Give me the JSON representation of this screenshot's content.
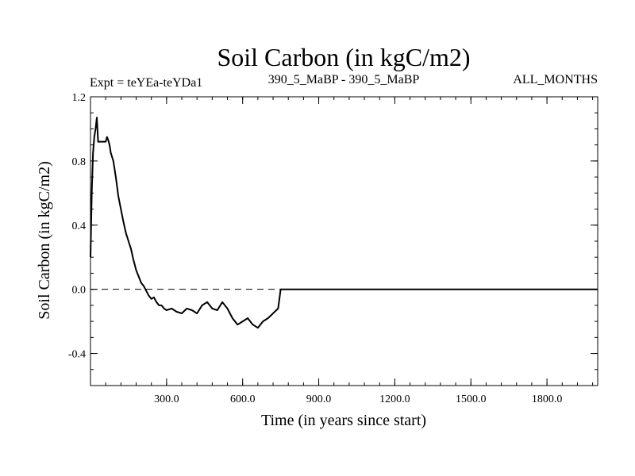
{
  "chart_data": {
    "type": "line",
    "title": "Soil Carbon (in kgC/m2)",
    "subtitle_left": "Expt = teYEa-teYDa1",
    "subtitle_center": "390_5_MaBP - 390_5_MaBP",
    "subtitle_right": "ALL_MONTHS",
    "xlabel": "Time (in years since start)",
    "ylabel": "Soil Carbon (in kgC/m2)",
    "xlim": [
      0,
      2000
    ],
    "ylim": [
      -0.6,
      1.2
    ],
    "x_ticks": [
      {
        "value": 300,
        "label": "300.0"
      },
      {
        "value": 600,
        "label": "600.0"
      },
      {
        "value": 900,
        "label": "900.0"
      },
      {
        "value": 1200,
        "label": "1200.0"
      },
      {
        "value": 1500,
        "label": "1500.0"
      },
      {
        "value": 1800,
        "label": "1800.0"
      }
    ],
    "y_ticks": [
      {
        "value": 1.2,
        "label": "1.2"
      },
      {
        "value": 0.8,
        "label": "0.8"
      },
      {
        "value": 0.4,
        "label": "0.4"
      },
      {
        "value": 0.0,
        "label": "0.0"
      },
      {
        "value": -0.4,
        "label": "-0.4"
      }
    ],
    "zero_line": {
      "value": 0.0,
      "style": "dashed"
    },
    "grid": false,
    "series": [
      {
        "line_color": "#000000",
        "x": [
          0,
          5,
          10,
          15,
          20,
          25,
          30,
          40,
          50,
          60,
          65,
          70,
          75,
          80,
          90,
          100,
          110,
          120,
          130,
          140,
          150,
          160,
          170,
          180,
          190,
          200,
          210,
          220,
          230,
          240,
          250,
          260,
          270,
          280,
          290,
          300,
          320,
          340,
          360,
          380,
          400,
          420,
          440,
          460,
          480,
          500,
          520,
          540,
          560,
          580,
          600,
          620,
          640,
          660,
          680,
          700,
          720,
          740,
          750,
          800,
          900,
          1000,
          1200,
          1400,
          1600,
          1800,
          2000
        ],
        "y": [
          0.2,
          0.6,
          0.85,
          0.95,
          1.0,
          1.07,
          0.92,
          0.92,
          0.92,
          0.92,
          0.95,
          0.93,
          0.9,
          0.85,
          0.8,
          0.7,
          0.58,
          0.5,
          0.42,
          0.35,
          0.3,
          0.25,
          0.18,
          0.12,
          0.08,
          0.04,
          0.02,
          -0.01,
          -0.04,
          -0.06,
          -0.05,
          -0.08,
          -0.1,
          -0.1,
          -0.12,
          -0.13,
          -0.12,
          -0.14,
          -0.15,
          -0.12,
          -0.13,
          -0.15,
          -0.1,
          -0.08,
          -0.12,
          -0.13,
          -0.08,
          -0.12,
          -0.18,
          -0.22,
          -0.2,
          -0.18,
          -0.22,
          -0.24,
          -0.2,
          -0.18,
          -0.15,
          -0.12,
          0.0,
          0.0,
          0.0,
          0.0,
          0.0,
          0.0,
          0.0,
          0.0,
          0.0
        ]
      }
    ]
  }
}
